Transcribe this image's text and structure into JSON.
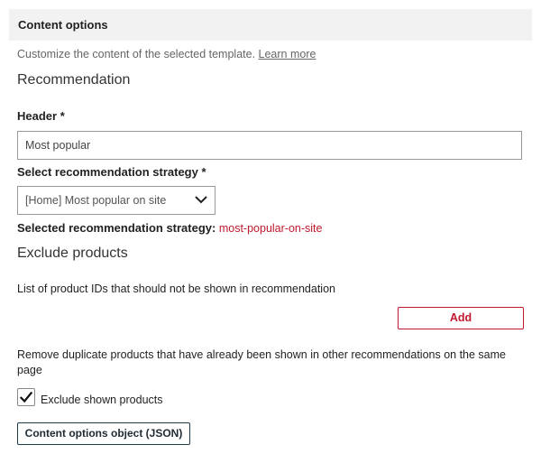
{
  "section": {
    "title": "Content options",
    "description": "Customize the content of the selected template.",
    "learn_more": "Learn more"
  },
  "recommendation": {
    "heading": "Recommendation",
    "header_label": "Header *",
    "header_value": "Most popular",
    "strategy_label": "Select recommendation strategy *",
    "strategy_value": "[Home] Most popular on site",
    "selected_label": "Selected recommendation strategy:",
    "selected_value": "most-popular-on-site"
  },
  "exclude": {
    "heading": "Exclude products",
    "description": "List of product IDs that should not be shown in recommendation",
    "add_label": "Add",
    "duplicate_description": "Remove duplicate products that have already been shown in other recommendations on the same page",
    "checkbox_label": "Exclude shown products",
    "checkbox_checked": true
  },
  "json_button": "Content options object (JSON)",
  "colors": {
    "accent": "#c0182d",
    "header_bg": "#f2f2f2"
  }
}
